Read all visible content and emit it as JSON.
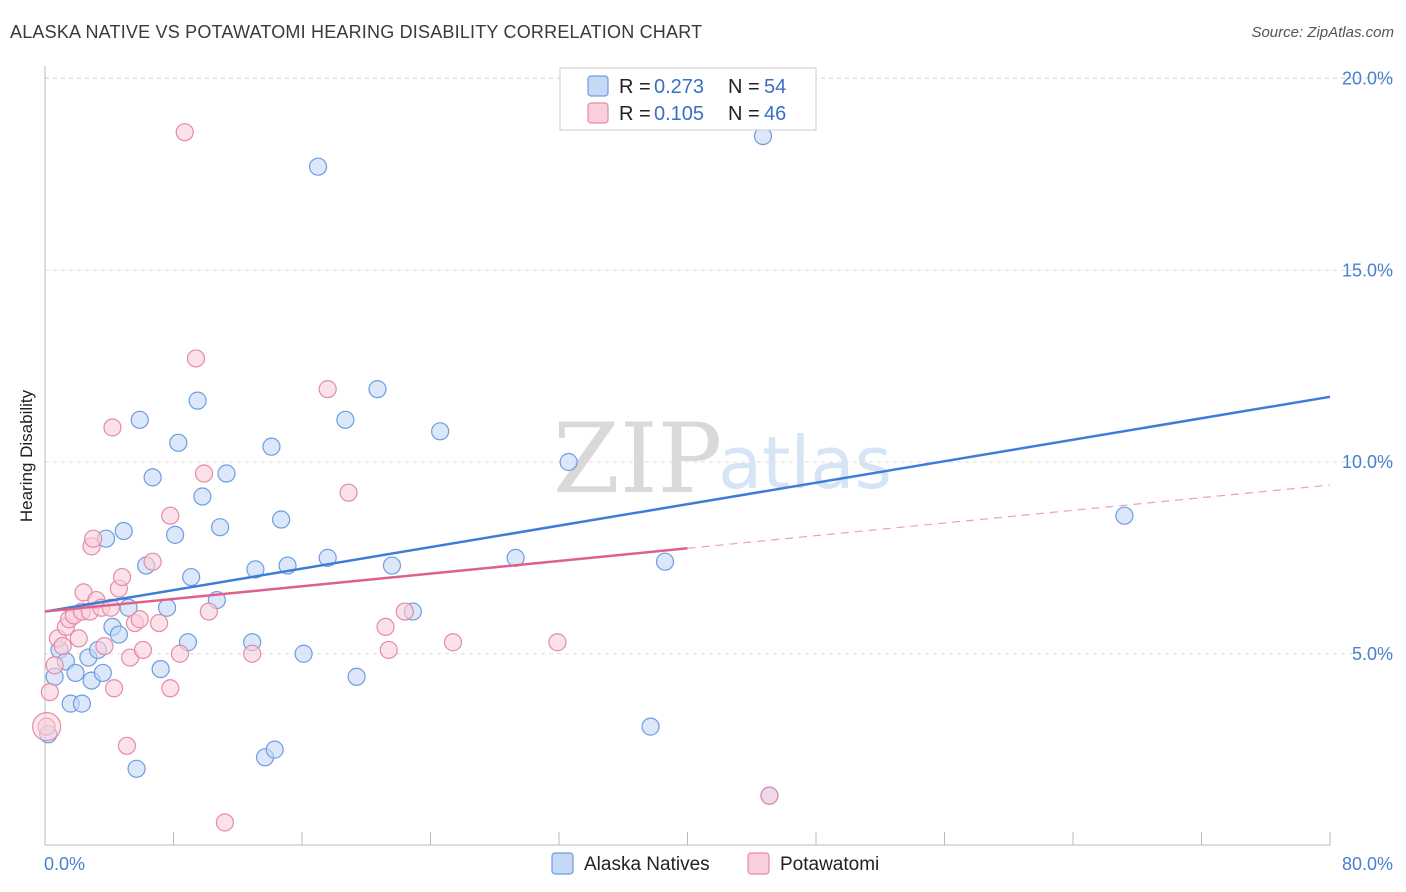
{
  "title": "ALASKA NATIVE VS POTAWATOMI HEARING DISABILITY CORRELATION CHART",
  "source": "Source: ZipAtlas.com",
  "watermark": {
    "zip": "ZIP",
    "atlas": "atlas"
  },
  "legend": {
    "r_label": "R =",
    "n_label": "N =",
    "series": [
      {
        "name": "Alaska Natives",
        "r": "0.273",
        "n": "54",
        "fill": "#c5d9f7",
        "stroke": "#6d9de0"
      },
      {
        "name": "Potawatomi",
        "r": "0.105",
        "n": "46",
        "fill": "#f9cfdc",
        "stroke": "#e68aa6"
      }
    ]
  },
  "chart_data": {
    "type": "scatter",
    "title": "ALASKA NATIVE VS POTAWATOMI HEARING DISABILITY CORRELATION CHART",
    "xlabel": "",
    "ylabel": "Hearing Disability",
    "xlim": [
      0,
      80
    ],
    "ylim": [
      0,
      21
    ],
    "x_tick_labels": [
      "0.0%",
      "80.0%"
    ],
    "y_ticks": [
      5,
      10,
      15,
      20
    ],
    "y_tick_labels": [
      "5.0%",
      "10.0%",
      "15.0%",
      "20.0%"
    ],
    "grid": true,
    "series": [
      {
        "name": "Alaska Natives",
        "color": "#3c7dd9",
        "point_fill": "#c5d9f7",
        "point_stroke": "#6d9de0",
        "trend": {
          "x": [
            0,
            80
          ],
          "y": [
            6.1,
            11.7
          ],
          "dashed_from": null
        },
        "points": [
          [
            0.2,
            2.9
          ],
          [
            0.6,
            4.4
          ],
          [
            0.9,
            5.1
          ],
          [
            1.3,
            4.8
          ],
          [
            1.6,
            3.7
          ],
          [
            1.9,
            4.5
          ],
          [
            2.3,
            3.7
          ],
          [
            2.7,
            4.9
          ],
          [
            2.9,
            4.3
          ],
          [
            3.3,
            5.1
          ],
          [
            3.6,
            4.5
          ],
          [
            3.8,
            8.0
          ],
          [
            4.2,
            5.7
          ],
          [
            4.6,
            5.5
          ],
          [
            4.9,
            8.2
          ],
          [
            5.2,
            6.2
          ],
          [
            5.7,
            2.0
          ],
          [
            5.9,
            11.1
          ],
          [
            6.3,
            7.3
          ],
          [
            6.7,
            9.6
          ],
          [
            7.2,
            4.6
          ],
          [
            7.6,
            6.2
          ],
          [
            8.1,
            8.1
          ],
          [
            8.3,
            10.5
          ],
          [
            8.9,
            5.3
          ],
          [
            9.1,
            7.0
          ],
          [
            9.5,
            11.6
          ],
          [
            9.8,
            9.1
          ],
          [
            10.7,
            6.4
          ],
          [
            10.9,
            8.3
          ],
          [
            11.3,
            9.7
          ],
          [
            12.9,
            5.3
          ],
          [
            13.1,
            7.2
          ],
          [
            13.7,
            2.3
          ],
          [
            14.1,
            10.4
          ],
          [
            14.3,
            2.5
          ],
          [
            14.7,
            8.5
          ],
          [
            15.1,
            7.3
          ],
          [
            16.1,
            5.0
          ],
          [
            17.0,
            17.7
          ],
          [
            17.6,
            7.5
          ],
          [
            18.7,
            11.1
          ],
          [
            19.4,
            4.4
          ],
          [
            20.7,
            11.9
          ],
          [
            21.6,
            7.3
          ],
          [
            22.9,
            6.1
          ],
          [
            24.6,
            10.8
          ],
          [
            29.3,
            7.5
          ],
          [
            32.6,
            10.0
          ],
          [
            37.7,
            3.1
          ],
          [
            38.6,
            7.4
          ],
          [
            44.7,
            18.5
          ],
          [
            45.1,
            1.3
          ],
          [
            67.2,
            8.6
          ]
        ]
      },
      {
        "name": "Potawatomi",
        "color": "#e0608c",
        "point_fill": "#f9cfdc",
        "point_stroke": "#e68aa6",
        "trend": {
          "x": [
            0,
            80
          ],
          "y": [
            6.1,
            9.4
          ],
          "dashed_from": 40
        },
        "points": [
          [
            0.1,
            3.1
          ],
          [
            0.3,
            4.0
          ],
          [
            0.6,
            4.7
          ],
          [
            0.8,
            5.4
          ],
          [
            1.1,
            5.2
          ],
          [
            1.3,
            5.7
          ],
          [
            1.5,
            5.9
          ],
          [
            1.8,
            6.0
          ],
          [
            2.1,
            5.4
          ],
          [
            2.3,
            6.1
          ],
          [
            2.4,
            6.6
          ],
          [
            2.8,
            6.1
          ],
          [
            2.9,
            7.8
          ],
          [
            3.0,
            8.0
          ],
          [
            3.2,
            6.4
          ],
          [
            3.5,
            6.2
          ],
          [
            3.7,
            5.2
          ],
          [
            4.1,
            6.2
          ],
          [
            4.2,
            10.9
          ],
          [
            4.3,
            4.1
          ],
          [
            4.6,
            6.7
          ],
          [
            4.8,
            7.0
          ],
          [
            5.1,
            2.6
          ],
          [
            5.3,
            4.9
          ],
          [
            5.6,
            5.8
          ],
          [
            5.9,
            5.9
          ],
          [
            6.1,
            5.1
          ],
          [
            6.7,
            7.4
          ],
          [
            7.1,
            5.8
          ],
          [
            7.8,
            8.6
          ],
          [
            7.8,
            4.1
          ],
          [
            8.4,
            5.0
          ],
          [
            8.7,
            18.6
          ],
          [
            9.4,
            12.7
          ],
          [
            9.9,
            9.7
          ],
          [
            10.2,
            6.1
          ],
          [
            11.2,
            0.6
          ],
          [
            12.9,
            5.0
          ],
          [
            17.6,
            11.9
          ],
          [
            18.9,
            9.2
          ],
          [
            21.2,
            5.7
          ],
          [
            21.4,
            5.1
          ],
          [
            22.4,
            6.1
          ],
          [
            25.4,
            5.3
          ],
          [
            31.9,
            5.3
          ],
          [
            45.1,
            1.3
          ]
        ]
      }
    ]
  }
}
